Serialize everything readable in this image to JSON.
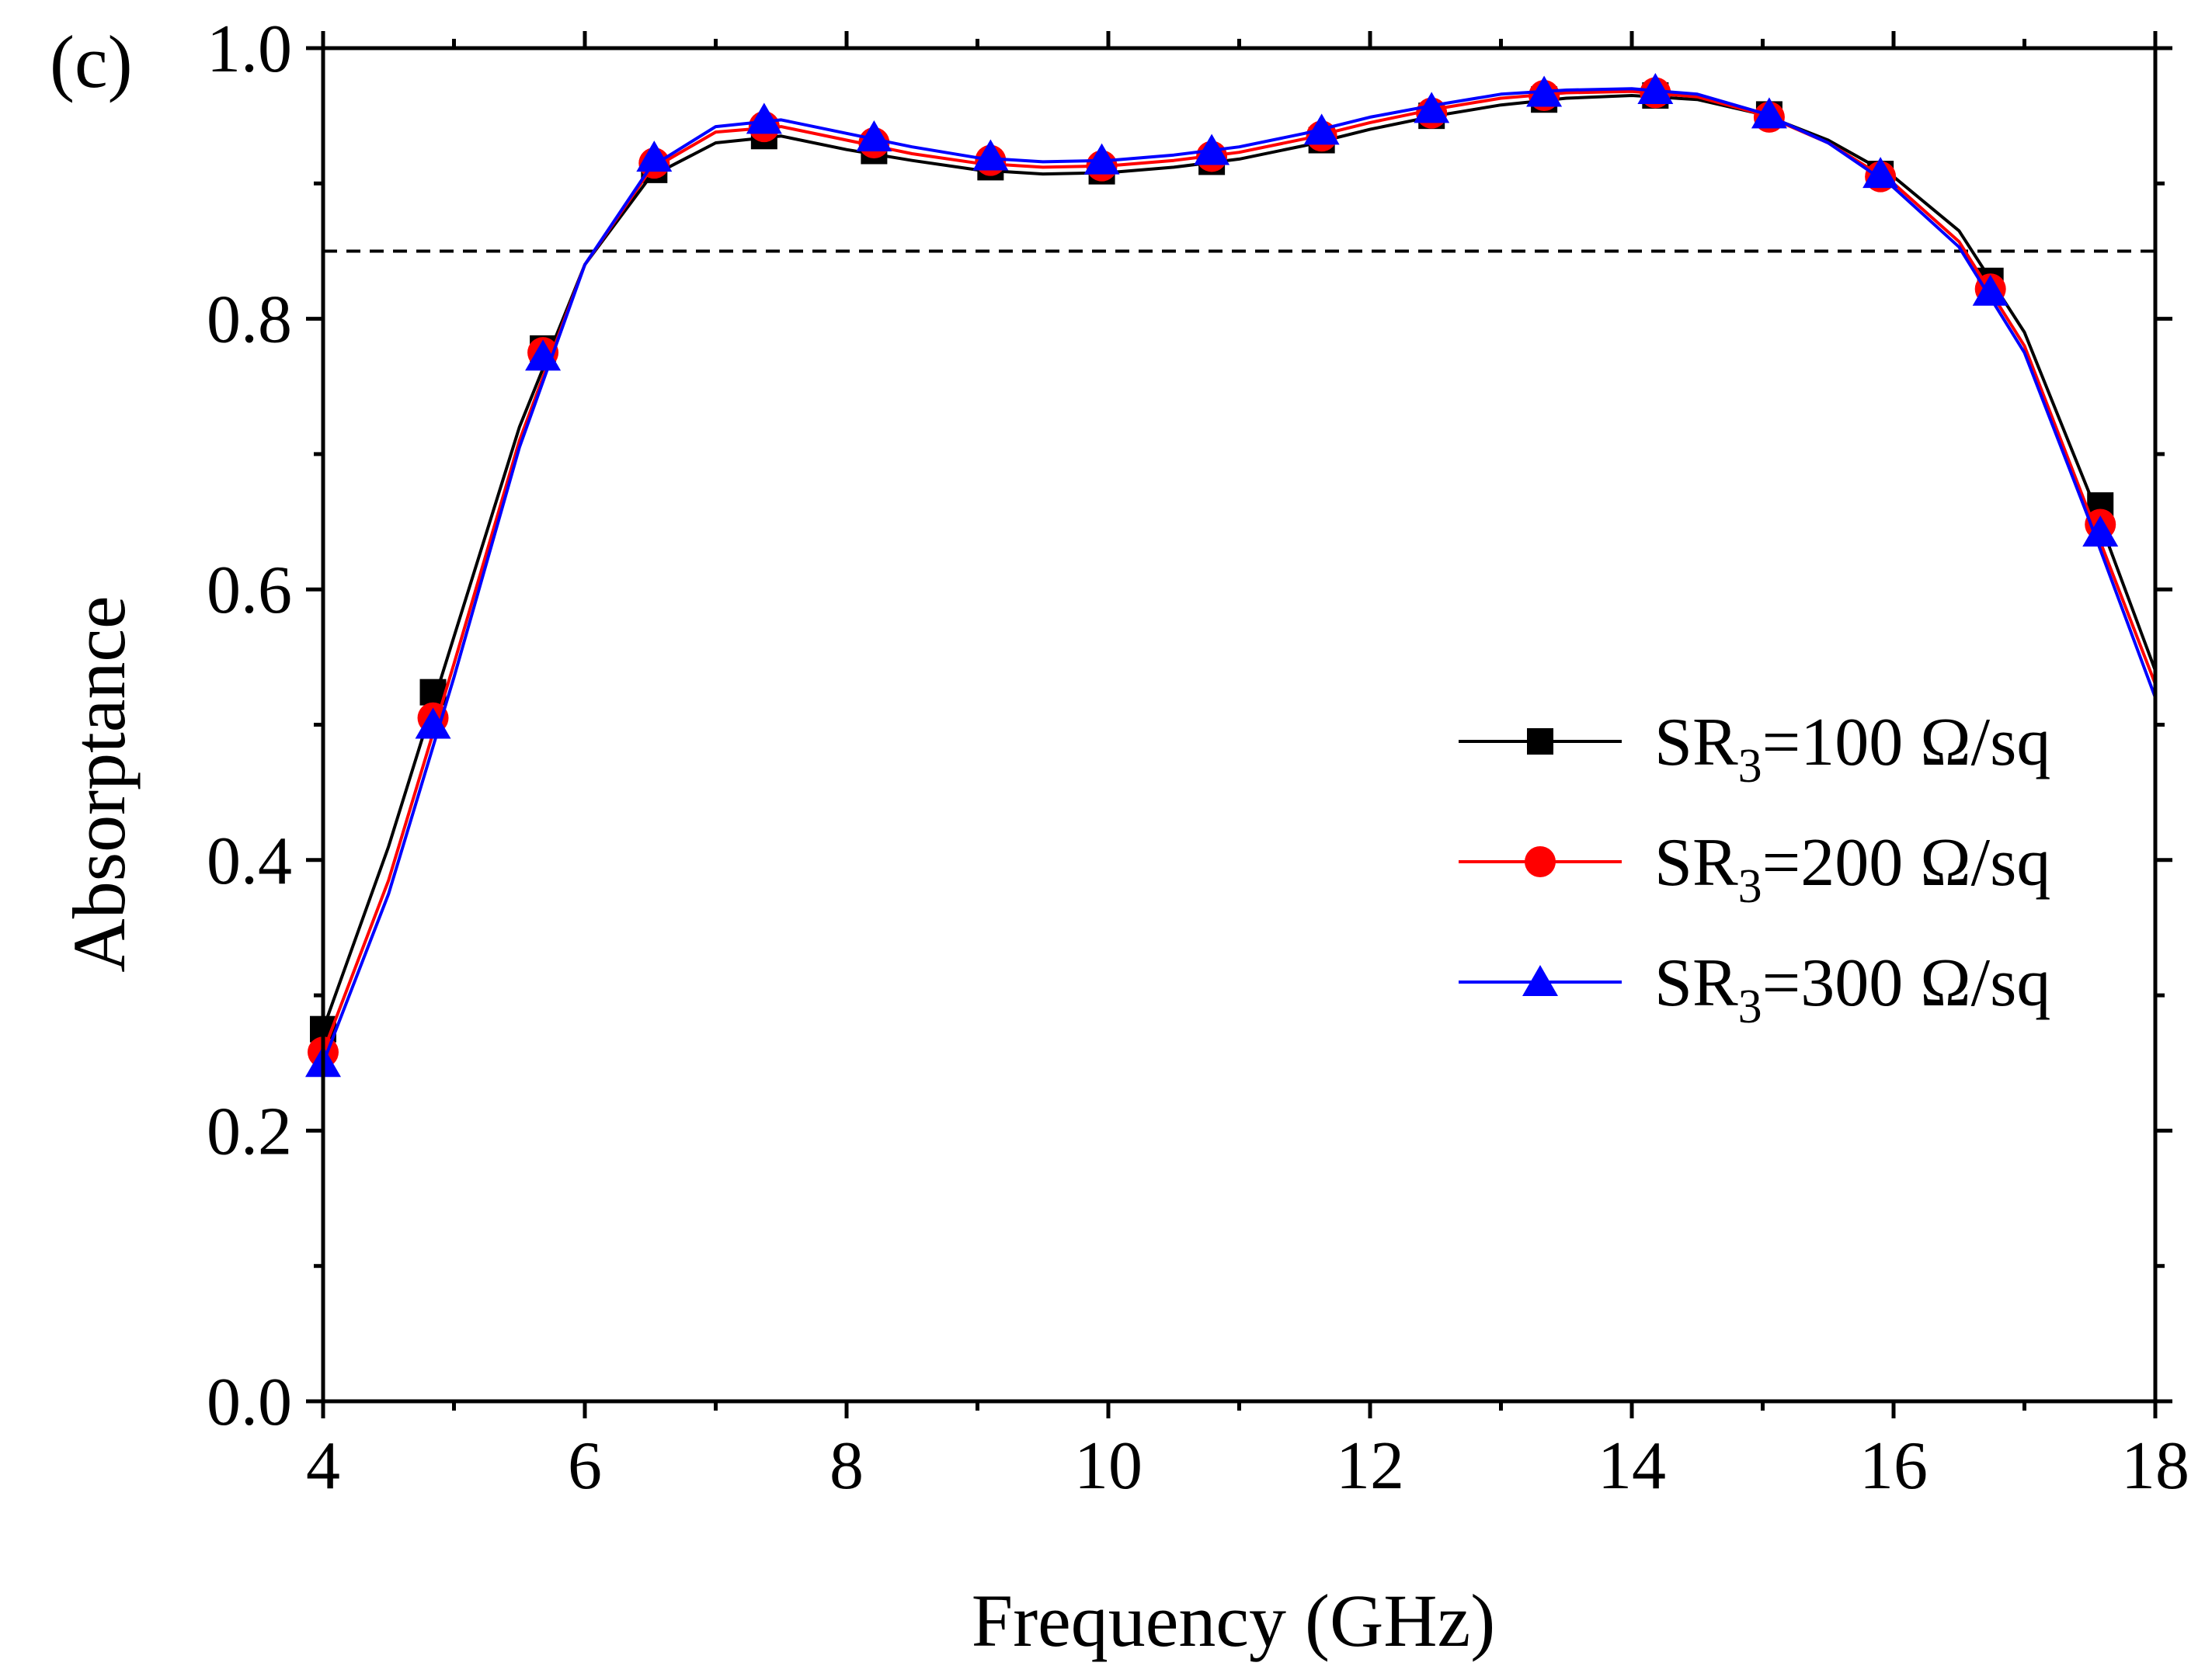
{
  "chart_data": {
    "type": "line",
    "panel_label": "(c)",
    "xlabel": "Frequency (GHz)",
    "ylabel": "Absorptance",
    "xlim": [
      4,
      18
    ],
    "ylim": [
      0.0,
      1.0
    ],
    "x_ticks": [
      {
        "value": 4,
        "label": "4"
      },
      {
        "value": 6,
        "label": "6"
      },
      {
        "value": 8,
        "label": "8"
      },
      {
        "value": 10,
        "label": "10"
      },
      {
        "value": 12,
        "label": "12"
      },
      {
        "value": 14,
        "label": "14"
      },
      {
        "value": 16,
        "label": "16"
      },
      {
        "value": 18,
        "label": "18"
      }
    ],
    "y_ticks": [
      {
        "value": 0.0,
        "label": "0.0"
      },
      {
        "value": 0.2,
        "label": "0.2"
      },
      {
        "value": 0.4,
        "label": "0.4"
      },
      {
        "value": 0.6,
        "label": "0.6"
      },
      {
        "value": 0.8,
        "label": "0.8"
      },
      {
        "value": 1.0,
        "label": "1.0"
      }
    ],
    "x_minor_step": 1,
    "y_minor_step": 0.1,
    "reference_line": {
      "y": 0.85,
      "style": "dashed",
      "color": "#000000"
    },
    "legend_position": "right",
    "series": [
      {
        "name": "SR3=100 Ω/sq",
        "label_prefix": "SR",
        "label_sub": "3",
        "label_suffix": "=100 Ω/sq",
        "color": "#000000",
        "marker": "square",
        "curve": {
          "x": [
            4.0,
            4.5,
            5.0,
            5.5,
            6.0,
            6.5,
            7.0,
            7.5,
            8.0,
            8.5,
            9.0,
            9.5,
            10.0,
            10.5,
            11.0,
            11.5,
            12.0,
            12.5,
            13.0,
            13.5,
            14.0,
            14.5,
            15.0,
            15.5,
            16.0,
            16.5,
            17.0,
            17.5,
            18.0
          ],
          "y": [
            0.275,
            0.41,
            0.565,
            0.72,
            0.84,
            0.905,
            0.93,
            0.935,
            0.925,
            0.917,
            0.91,
            0.907,
            0.908,
            0.912,
            0.918,
            0.928,
            0.94,
            0.95,
            0.958,
            0.963,
            0.965,
            0.962,
            0.951,
            0.932,
            0.905,
            0.865,
            0.79,
            0.67,
            0.54
          ]
        },
        "markers": {
          "x": [
            4.0,
            4.84,
            5.68,
            6.53,
            7.37,
            8.21,
            9.1,
            9.95,
            10.79,
            11.63,
            12.47,
            13.33,
            14.18,
            15.05,
            15.9,
            16.74,
            17.58
          ],
          "y": [
            0.275,
            0.524,
            0.778,
            0.91,
            0.935,
            0.924,
            0.912,
            0.909,
            0.916,
            0.932,
            0.95,
            0.962,
            0.965,
            0.951,
            0.907,
            0.828,
            0.662
          ]
        }
      },
      {
        "name": "SR3=200 Ω/sq",
        "label_prefix": "SR",
        "label_sub": "3",
        "label_suffix": "=200 Ω/sq",
        "color": "#ff0000",
        "marker": "circle",
        "curve": {
          "x": [
            4.0,
            4.5,
            5.0,
            5.5,
            6.0,
            6.5,
            7.0,
            7.5,
            8.0,
            8.5,
            9.0,
            9.5,
            10.0,
            10.5,
            11.0,
            11.5,
            12.0,
            12.5,
            13.0,
            13.5,
            14.0,
            14.5,
            15.0,
            15.5,
            16.0,
            16.5,
            17.0,
            17.5,
            18.0
          ],
          "y": [
            0.258,
            0.385,
            0.545,
            0.71,
            0.84,
            0.91,
            0.938,
            0.942,
            0.932,
            0.922,
            0.915,
            0.912,
            0.913,
            0.917,
            0.923,
            0.933,
            0.945,
            0.955,
            0.963,
            0.967,
            0.968,
            0.964,
            0.951,
            0.93,
            0.9,
            0.857,
            0.78,
            0.655,
            0.53
          ]
        },
        "markers": {
          "x": [
            4.0,
            4.84,
            5.68,
            6.53,
            7.37,
            8.21,
            9.1,
            9.95,
            10.79,
            11.63,
            12.47,
            13.33,
            14.18,
            15.05,
            15.9,
            16.74,
            17.58
          ],
          "y": [
            0.258,
            0.505,
            0.775,
            0.915,
            0.942,
            0.93,
            0.917,
            0.913,
            0.92,
            0.935,
            0.952,
            0.965,
            0.967,
            0.949,
            0.905,
            0.822,
            0.648
          ]
        }
      },
      {
        "name": "SR3=300 Ω/sq",
        "label_prefix": "SR",
        "label_sub": "3",
        "label_suffix": "=300 Ω/sq",
        "color": "#0000ff",
        "marker": "triangle",
        "curve": {
          "x": [
            4.0,
            4.5,
            5.0,
            5.5,
            6.0,
            6.5,
            7.0,
            7.5,
            8.0,
            8.5,
            9.0,
            9.5,
            10.0,
            10.5,
            11.0,
            11.5,
            12.0,
            12.5,
            13.0,
            13.5,
            14.0,
            14.5,
            15.0,
            15.5,
            16.0,
            16.5,
            17.0,
            17.5,
            18.0
          ],
          "y": [
            0.25,
            0.375,
            0.535,
            0.705,
            0.84,
            0.912,
            0.942,
            0.947,
            0.937,
            0.927,
            0.919,
            0.916,
            0.917,
            0.921,
            0.927,
            0.937,
            0.949,
            0.958,
            0.966,
            0.969,
            0.97,
            0.966,
            0.952,
            0.93,
            0.897,
            0.853,
            0.775,
            0.65,
            0.52
          ]
        },
        "markers": {
          "x": [
            4.0,
            4.84,
            5.68,
            6.53,
            7.37,
            8.21,
            9.1,
            9.95,
            10.79,
            11.63,
            12.47,
            13.33,
            14.18,
            15.05,
            15.9,
            16.74,
            17.58
          ],
          "y": [
            0.25,
            0.5,
            0.772,
            0.919,
            0.947,
            0.934,
            0.92,
            0.917,
            0.924,
            0.939,
            0.955,
            0.967,
            0.969,
            0.951,
            0.907,
            0.82,
            0.642
          ]
        }
      }
    ]
  }
}
